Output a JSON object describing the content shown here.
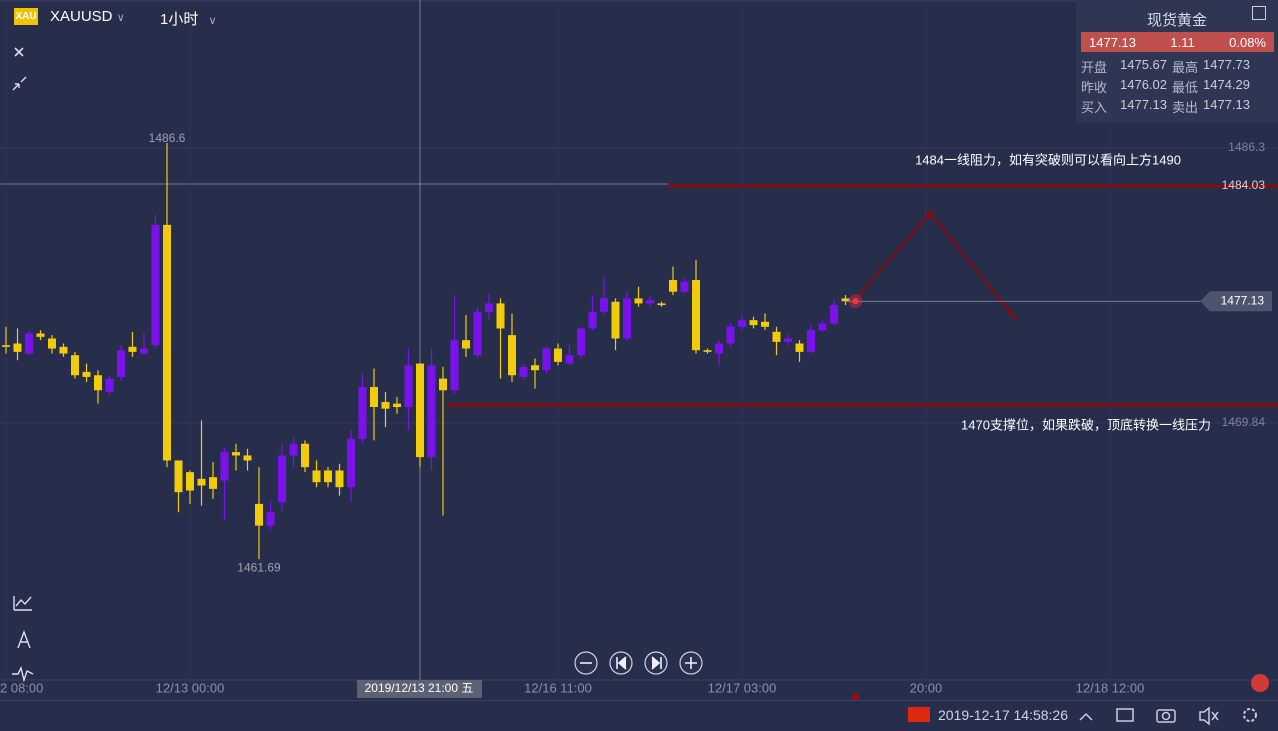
{
  "header": {
    "symbol": "XAUUSD",
    "timeframe": "1小时",
    "icon": "XAU"
  },
  "quote": {
    "title": "现货黄金",
    "price": "1477.13",
    "change": "1.11",
    "change_pct": "0.08%",
    "rows": [
      [
        "开盘",
        "1475.67",
        "最高",
        "1477.73"
      ],
      [
        "昨收",
        "1476.02",
        "最低",
        "1474.29"
      ],
      [
        "买入",
        "1477.13",
        "卖出",
        "1477.13"
      ]
    ]
  },
  "chart_data": {
    "type": "candlestick",
    "up_color": "#7b12ee",
    "down_color": "#f2cc0a",
    "ylim": [
      1454.46,
      1495.16
    ],
    "yticks": [
      1486.3,
      1469.84
    ],
    "categories": [
      "2 08:00",
      null,
      null,
      null,
      null,
      null,
      null,
      null,
      null,
      null,
      null,
      null,
      null,
      null,
      null,
      null,
      "12/13 00:00",
      null,
      null,
      null,
      null,
      null,
      null,
      null,
      null,
      null,
      null,
      null,
      null,
      null,
      null,
      null,
      null,
      null,
      null,
      null,
      null,
      null,
      null,
      null,
      null,
      null,
      null,
      null,
      null,
      null,
      null,
      null,
      "12/16 11:00",
      null,
      null,
      null,
      null,
      null,
      null,
      null,
      null,
      null,
      null,
      null,
      null,
      null,
      null,
      null,
      "12/17 03:00",
      null,
      null,
      null,
      null,
      null,
      null,
      null,
      null,
      null,
      null,
      null,
      null,
      null,
      null,
      null,
      "20:00",
      null,
      null,
      null,
      null,
      null,
      null,
      null,
      null,
      null,
      null,
      null,
      null,
      null,
      null,
      null,
      "12/18 12:00"
    ],
    "open": [
      1474.5,
      1474.6,
      1474.0,
      1475.2,
      1474.9,
      1474.4,
      1473.9,
      1472.9,
      1472.7,
      1471.7,
      1472.6,
      1474.4,
      1474.0,
      1474.5,
      1481.7,
      1467.6,
      1466.9,
      1466.5,
      1466.6,
      1466.4,
      1468.1,
      1467.9,
      1465.0,
      1463.7,
      1465.1,
      1467.9,
      1468.6,
      1467.0,
      1467.0,
      1467.0,
      1466.0,
      1468.9,
      1472.0,
      1471.1,
      1471.0,
      1470.8,
      1473.4,
      1467.8,
      1472.5,
      1471.8,
      1474.8,
      1473.9,
      1476.5,
      1477.0,
      1475.1,
      1472.6,
      1473.3,
      1473.0,
      1474.3,
      1473.4,
      1473.9,
      1475.5,
      1476.5,
      1477.1,
      1474.9,
      1477.3,
      1477.0,
      1477.0,
      1478.4,
      1477.7,
      1478.4,
      1474.2,
      1474.0,
      1474.6,
      1475.6,
      1476.0,
      1475.9,
      1475.3,
      1474.7,
      1474.6,
      1474.1,
      1475.4,
      1475.8,
      1477.3,
      null,
      null,
      null,
      null,
      null,
      null,
      null,
      null,
      null,
      null,
      null,
      null,
      null,
      null,
      null,
      null,
      null,
      null,
      null,
      null,
      null,
      null,
      null
    ],
    "high": [
      1475.6,
      1475.5,
      1475.4,
      1475.4,
      1475.1,
      1474.6,
      1474.1,
      1473.4,
      1473.0,
      1472.7,
      1474.5,
      1475.3,
      1475.2,
      1482.3,
      1486.6,
      1467.6,
      1467.0,
      1470.0,
      1467.5,
      1468.4,
      1468.6,
      1468.3,
      1467.2,
      1465.2,
      1468.6,
      1469.0,
      1468.8,
      1467.6,
      1467.2,
      1467.4,
      1469.4,
      1472.8,
      1473.1,
      1471.7,
      1471.4,
      1474.3,
      1473.4,
      1474.3,
      1473.2,
      1477.5,
      1476.3,
      1476.8,
      1477.6,
      1477.3,
      1476.4,
      1473.4,
      1473.7,
      1474.4,
      1474.6,
      1474.5,
      1475.6,
      1477.5,
      1478.6,
      1477.3,
      1477.7,
      1478.0,
      1477.4,
      1477.1,
      1479.2,
      1478.5,
      1479.6,
      1474.3,
      1474.8,
      1475.8,
      1476.3,
      1476.2,
      1476.4,
      1475.6,
      1475.2,
      1474.8,
      1475.7,
      1476.0,
      1477.2,
      1477.5,
      null,
      null,
      null,
      null,
      null,
      null,
      null,
      null,
      null,
      null,
      null,
      null,
      null,
      null,
      null,
      null,
      null,
      null,
      null,
      null,
      null,
      null,
      null
    ],
    "low": [
      1474.0,
      1473.6,
      1473.9,
      1474.8,
      1474.0,
      1473.8,
      1472.5,
      1472.3,
      1471.0,
      1471.5,
      1472.4,
      1473.8,
      1473.9,
      1474.3,
      1467.2,
      1464.5,
      1465.0,
      1464.9,
      1465.3,
      1464.0,
      1467.0,
      1467.0,
      1461.69,
      1463.4,
      1464.6,
      1467.2,
      1466.9,
      1466.0,
      1466.0,
      1465.5,
      1465.1,
      1468.6,
      1468.8,
      1469.6,
      1470.4,
      1469.4,
      1467.2,
      1467.0,
      1464.3,
      1471.6,
      1473.8,
      1473.7,
      1476.0,
      1472.5,
      1472.3,
      1472.4,
      1471.9,
      1472.8,
      1473.3,
      1473.3,
      1473.7,
      1475.4,
      1476.3,
      1474.2,
      1474.8,
      1476.8,
      1476.8,
      1476.8,
      1477.5,
      1477.6,
      1474.0,
      1474.0,
      1473.3,
      1474.4,
      1475.4,
      1475.5,
      1475.4,
      1473.9,
      1474.5,
      1473.5,
      1474.0,
      1475.3,
      1475.7,
      1476.9,
      null,
      null,
      null,
      null,
      null,
      null,
      null,
      null,
      null,
      null,
      null,
      null,
      null,
      null,
      null,
      null,
      null,
      null,
      null,
      null,
      null,
      null,
      null
    ],
    "close": [
      1474.4,
      1474.1,
      1475.2,
      1475.0,
      1474.3,
      1474.0,
      1472.7,
      1472.6,
      1471.8,
      1472.5,
      1474.2,
      1474.1,
      1474.3,
      1481.7,
      1467.6,
      1465.7,
      1465.8,
      1466.1,
      1465.9,
      1468.1,
      1467.9,
      1467.6,
      1463.7,
      1464.5,
      1467.9,
      1468.6,
      1467.2,
      1466.3,
      1466.3,
      1466.0,
      1468.9,
      1472.0,
      1470.8,
      1470.7,
      1470.8,
      1473.3,
      1467.8,
      1473.3,
      1471.8,
      1474.8,
      1474.3,
      1476.5,
      1477.0,
      1475.5,
      1472.7,
      1473.2,
      1473.0,
      1474.3,
      1473.5,
      1473.9,
      1475.5,
      1476.5,
      1477.3,
      1474.9,
      1477.3,
      1477.0,
      1477.2,
      1476.9,
      1477.7,
      1478.3,
      1474.2,
      1474.1,
      1474.6,
      1475.6,
      1476.0,
      1475.7,
      1475.6,
      1474.7,
      1474.9,
      1474.1,
      1475.4,
      1475.8,
      1476.9,
      1477.13,
      null,
      null,
      null,
      null,
      null,
      null,
      null,
      null,
      null,
      null,
      null,
      null,
      null,
      null,
      null,
      null,
      null,
      null,
      null,
      null,
      null,
      null,
      null
    ],
    "resistance": {
      "value": 1484.03,
      "annotation": "1484一线阻力，如有突破则可以看向上方1490",
      "color": "#8b0a0a"
    },
    "support": {
      "value": 1470.92,
      "annotation": "1470支撑位，如果跌破，顶底转换一线压力",
      "color": "#8b0a0a"
    },
    "crosshair_label": "2019/12/13 21:00 五"
  },
  "status": {
    "datetime": "2019-12-17 14:58:26"
  }
}
